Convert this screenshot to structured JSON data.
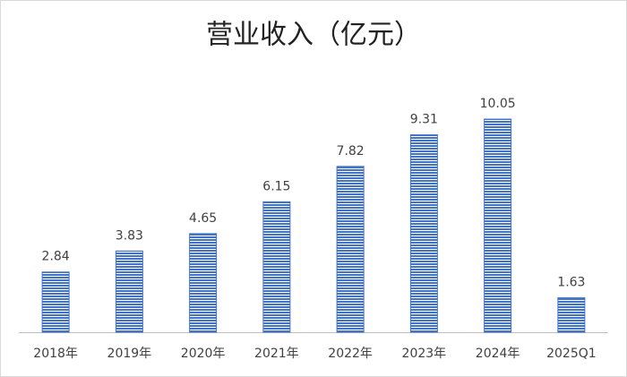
{
  "chart_data": {
    "type": "bar",
    "title": "营业收入（亿元）",
    "categories": [
      "2018年",
      "2019年",
      "2020年",
      "2021年",
      "2022年",
      "2023年",
      "2024年",
      "2025Q1"
    ],
    "values": [
      2.84,
      3.83,
      4.65,
      6.15,
      7.82,
      9.31,
      10.05,
      1.63
    ],
    "color": "#4472c4"
  }
}
